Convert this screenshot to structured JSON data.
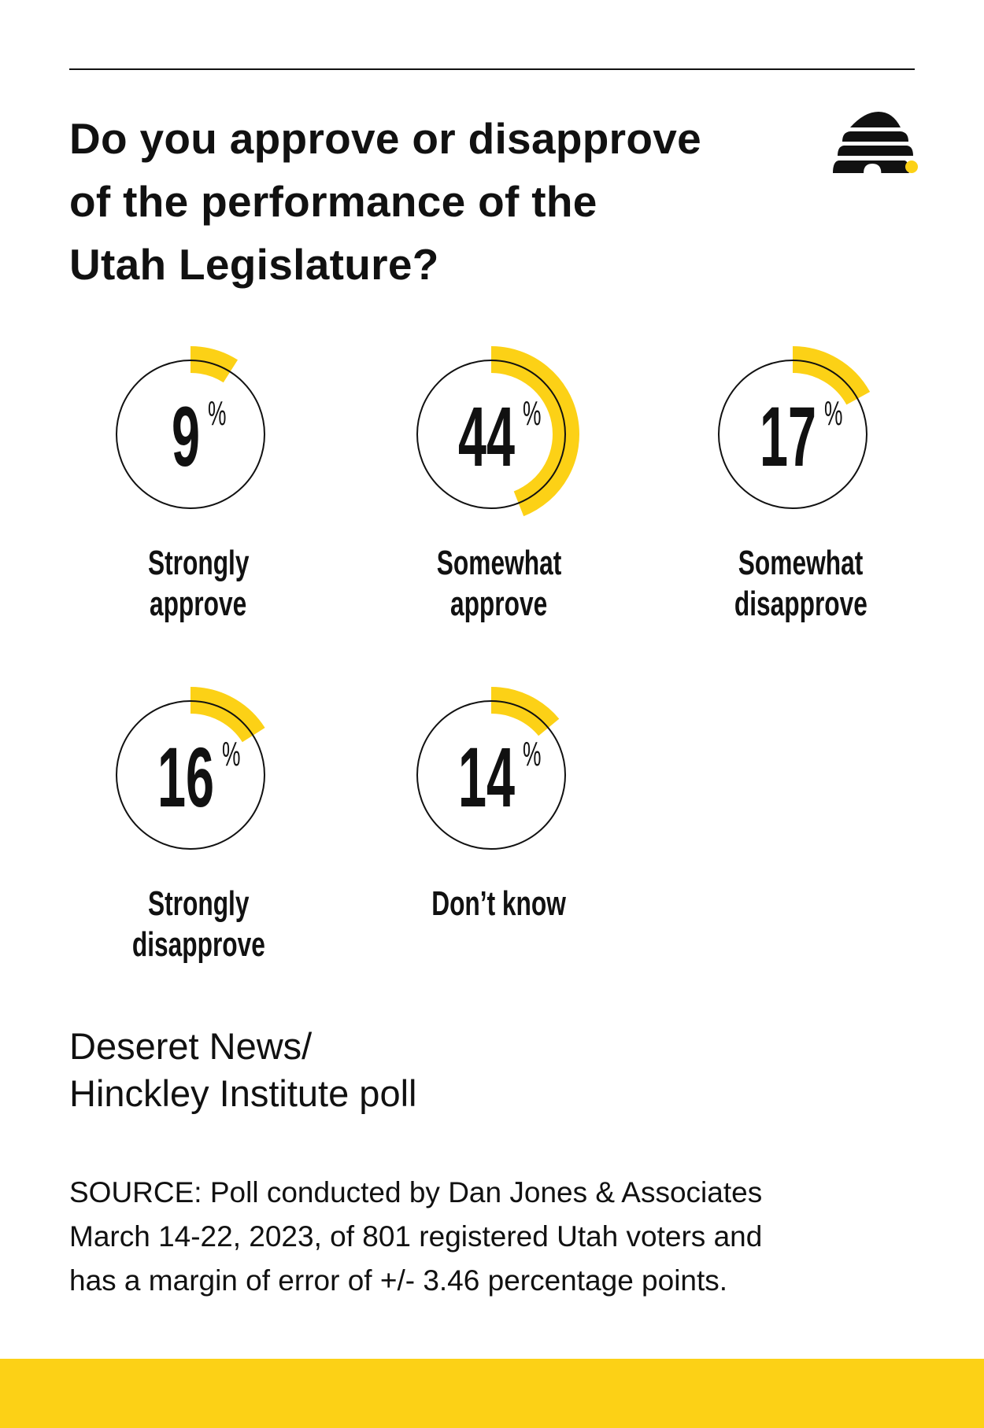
{
  "title": [
    "Do you approve or disapprove",
    "of the performance of the",
    "Utah Legislature?"
  ],
  "logo": "beehive-logo",
  "colors": {
    "accent": "#fcd116",
    "ink": "#111111"
  },
  "chart_data": {
    "type": "donut",
    "title": "Do you approve or disapprove of the performance of the Utah Legislature?",
    "unit": "%",
    "items": [
      {
        "label_lines": [
          "Strongly",
          "approve"
        ],
        "value": 9
      },
      {
        "label_lines": [
          "Somewhat",
          "approve"
        ],
        "value": 44
      },
      {
        "label_lines": [
          "Somewhat",
          "disapprove"
        ],
        "value": 17
      },
      {
        "label_lines": [
          "Strongly",
          "disapprove"
        ],
        "value": 16
      },
      {
        "label_lines": [
          "Don’t know"
        ],
        "value": 14
      }
    ]
  },
  "poll_name": [
    "Deseret News/",
    "Hinckley Institute poll"
  ],
  "source": [
    "SOURCE: Poll conducted by Dan Jones & Associates",
    "March 14-22, 2023, of 801 registered Utah voters and",
    "has a margin of error of +/- 3.46 percentage points."
  ]
}
